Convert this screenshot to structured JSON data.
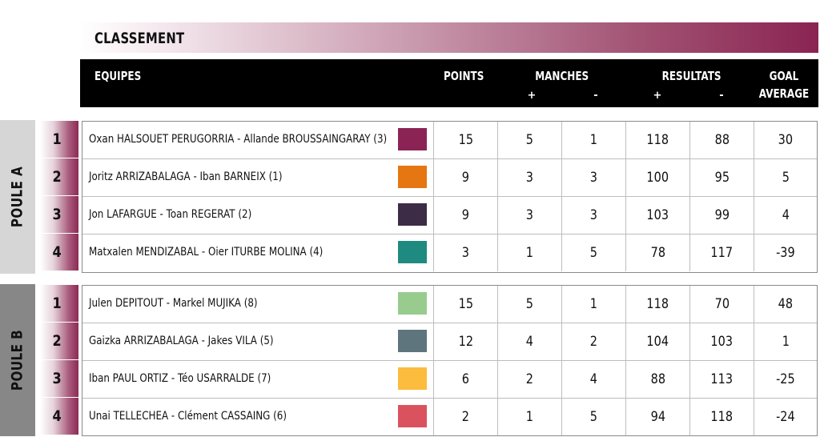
{
  "title": "CLASSEMENT",
  "header": {
    "equipes": "EQUIPES",
    "points": "POINTS",
    "manches": "MANCHES",
    "resultats": "RESULTATS",
    "goal_average_line1": "GOAL",
    "goal_average_line2": "AVERAGE",
    "plus": "+",
    "minus": "-"
  },
  "pools": [
    {
      "label": "POULE A",
      "rows": [
        {
          "rank": "1",
          "team": "Oxan HALSOUET PERUGORRIA - Allande BROUSSAINGARAY (3)",
          "color": "#8b2454",
          "points": "15",
          "manches_plus": "5",
          "manches_minus": "1",
          "resultats_plus": "118",
          "resultats_minus": "88",
          "goal_average": "30"
        },
        {
          "rank": "2",
          "team": "Joritz ARRIZABALAGA - Iban BARNEIX (1)",
          "color": "#e57612",
          "points": "9",
          "manches_plus": "3",
          "manches_minus": "3",
          "resultats_plus": "100",
          "resultats_minus": "95",
          "goal_average": "5"
        },
        {
          "rank": "3",
          "team": "Jon LAFARGUE - Toan REGERAT (2)",
          "color": "#3d2c45",
          "points": "9",
          "manches_plus": "3",
          "manches_minus": "3",
          "resultats_plus": "103",
          "resultats_minus": "99",
          "goal_average": "4"
        },
        {
          "rank": "4",
          "team": "Matxalen MENDIZABAL - Oier ITURBE MOLINA (4)",
          "color": "#1f8a80",
          "points": "3",
          "manches_plus": "1",
          "manches_minus": "5",
          "resultats_plus": "78",
          "resultats_minus": "117",
          "goal_average": "-39"
        }
      ]
    },
    {
      "label": "POULE B",
      "rows": [
        {
          "rank": "1",
          "team": "Julen DEPITOUT - Markel MUJIKA (8)",
          "color": "#97cc8e",
          "points": "15",
          "manches_plus": "5",
          "manches_minus": "1",
          "resultats_plus": "118",
          "resultats_minus": "70",
          "goal_average": "48"
        },
        {
          "rank": "2",
          "team": "Gaizka ARRIZABALAGA - Jakes VILA (5)",
          "color": "#5f757d",
          "points": "12",
          "manches_plus": "4",
          "manches_minus": "2",
          "resultats_plus": "104",
          "resultats_minus": "103",
          "goal_average": "1"
        },
        {
          "rank": "3",
          "team": "Iban PAUL ORTIZ - Téo USARRALDE (7)",
          "color": "#fcbc3e",
          "points": "6",
          "manches_plus": "2",
          "manches_minus": "4",
          "resultats_plus": "88",
          "resultats_minus": "113",
          "goal_average": "-25"
        },
        {
          "rank": "4",
          "team": "Unai TELLECHEA - Clément CASSAING (6)",
          "color": "#db525f",
          "points": "2",
          "manches_plus": "1",
          "manches_minus": "5",
          "resultats_plus": "94",
          "resultats_minus": "118",
          "goal_average": "-24"
        }
      ]
    }
  ]
}
